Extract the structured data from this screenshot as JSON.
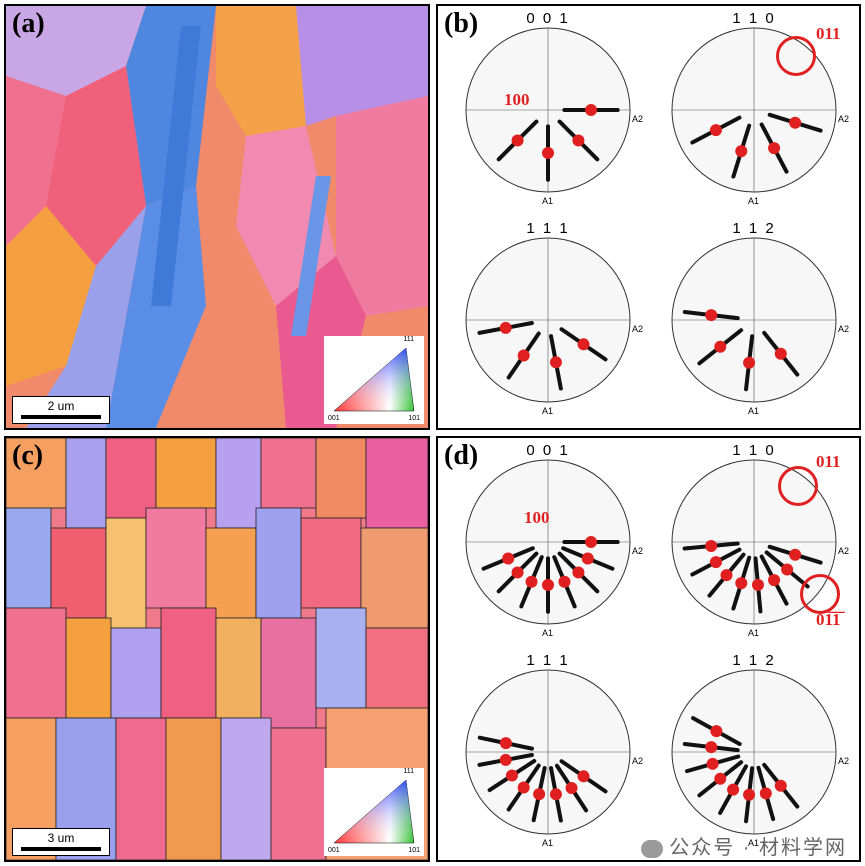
{
  "panels": {
    "a": {
      "label": "(a)",
      "scale": "2 um",
      "ipf": {
        "top": "111",
        "left": "001",
        "right": "101"
      }
    },
    "b": {
      "label": "(b)"
    },
    "c": {
      "label": "(c)",
      "scale": "3 um",
      "ipf": {
        "top": "111",
        "left": "001",
        "right": "101"
      }
    },
    "d": {
      "label": "(d)"
    }
  },
  "pole_figures": {
    "titles": [
      "0 0 1",
      "1 1 0",
      "1 1 1",
      "1 1 2"
    ],
    "axis_a1": "A1",
    "axis_a2": "A2"
  },
  "annotations": {
    "b_100": "100",
    "b_011": "011",
    "d_100": "100",
    "d_011": "011",
    "d_01-1": "01̅1̅"
  },
  "watermark": "公众号 · 材料学网",
  "colors": {
    "accent_red": "#e02020"
  }
}
